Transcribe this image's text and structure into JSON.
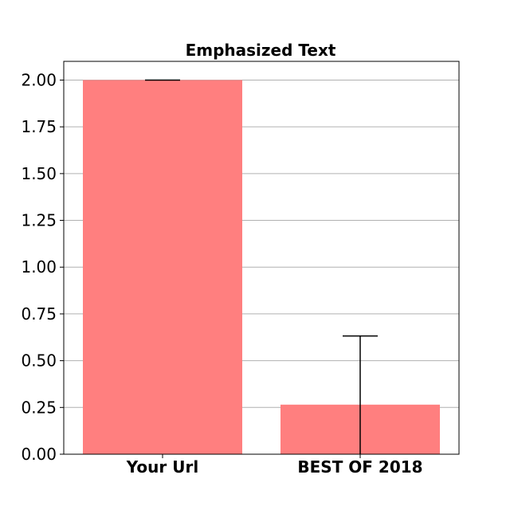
{
  "chart_data": {
    "type": "bar",
    "title": "Emphasized Text",
    "xlabel": "",
    "ylabel": "",
    "categories": [
      "Your Url",
      "BEST OF 2018"
    ],
    "values": [
      2.0,
      0.265
    ],
    "error_upper": [
      2.0,
      0.632
    ],
    "error_lower": [
      2.0,
      0.0
    ],
    "ylim": [
      0,
      2.1
    ],
    "yticks": [
      "0.00",
      "0.25",
      "0.50",
      "0.75",
      "1.00",
      "1.25",
      "1.50",
      "1.75",
      "2.00"
    ],
    "grid": "horizontal",
    "bar_color": "#ff7f7f"
  }
}
